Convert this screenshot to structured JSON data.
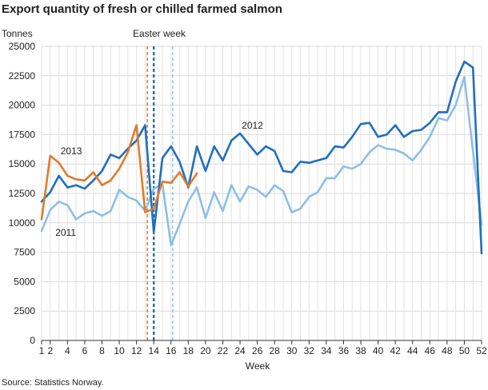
{
  "chart_data": {
    "type": "line",
    "title": "Export quantity of fresh or chilled farmed salmon",
    "ylabel": "Tonnes",
    "xlabel": "Week",
    "source": "Source: Statistics Norway.",
    "ylim": [
      0,
      25000
    ],
    "yticks": [
      0,
      2500,
      5000,
      7500,
      10000,
      12500,
      15000,
      17500,
      20000,
      22500,
      25000
    ],
    "ytick_labels": [
      "0",
      "2500",
      "5000",
      "7500",
      "10000",
      "12500",
      "15000",
      "17500",
      "20000",
      "22500",
      "25000"
    ],
    "xlim": [
      1,
      52
    ],
    "xticks": [
      1,
      2,
      4,
      6,
      8,
      10,
      12,
      14,
      16,
      18,
      20,
      22,
      24,
      26,
      28,
      30,
      32,
      34,
      36,
      38,
      40,
      42,
      44,
      46,
      48,
      50,
      52
    ],
    "grid": true,
    "annotation": "Easter week",
    "series": [
      {
        "name": "2011",
        "color": "#8cbfe6",
        "x": [
          1,
          2,
          3,
          4,
          5,
          6,
          7,
          8,
          9,
          10,
          11,
          12,
          13,
          14,
          15,
          16,
          17,
          18,
          19,
          20,
          21,
          22,
          23,
          24,
          25,
          26,
          27,
          28,
          29,
          30,
          31,
          32,
          33,
          34,
          35,
          36,
          37,
          38,
          39,
          40,
          41,
          42,
          43,
          44,
          45,
          46,
          47,
          48,
          49,
          50,
          51,
          52
        ],
        "values": [
          9300,
          11100,
          11800,
          11500,
          10300,
          10800,
          11000,
          10600,
          11000,
          12800,
          12200,
          11900,
          11000,
          12900,
          13300,
          8100,
          9900,
          11800,
          13000,
          10400,
          12600,
          11000,
          13200,
          11800,
          13100,
          12800,
          12200,
          13200,
          12700,
          10900,
          11200,
          12200,
          12600,
          13800,
          13800,
          14800,
          14600,
          15000,
          16000,
          16600,
          16300,
          16200,
          15900,
          15300,
          16200,
          17300,
          18900,
          18700,
          20000,
          22400,
          16100,
          9800
        ],
        "label_at_x": 2.6,
        "label_at_y": 9300
      },
      {
        "name": "2012",
        "color": "#1f6fbf",
        "x": [
          1,
          2,
          3,
          4,
          5,
          6,
          7,
          8,
          9,
          10,
          11,
          12,
          13,
          14,
          15,
          16,
          17,
          18,
          19,
          20,
          21,
          22,
          23,
          24,
          25,
          26,
          27,
          28,
          29,
          30,
          31,
          32,
          33,
          34,
          35,
          36,
          37,
          38,
          39,
          40,
          41,
          42,
          43,
          44,
          45,
          46,
          47,
          48,
          49,
          50,
          51,
          52
        ],
        "values": [
          11800,
          12600,
          14000,
          13000,
          13200,
          12900,
          13600,
          14400,
          15800,
          15500,
          16300,
          17000,
          18300,
          9200,
          15500,
          16500,
          15200,
          13000,
          16500,
          14400,
          16500,
          15300,
          17000,
          17600,
          16700,
          15800,
          16500,
          16100,
          14400,
          14300,
          15200,
          15100,
          15300,
          15500,
          16500,
          16400,
          17300,
          18400,
          18500,
          17300,
          17500,
          18300,
          17300,
          17800,
          17900,
          18500,
          19400,
          19400,
          22000,
          23700,
          23200,
          7400
        ],
        "label_at_x": 24.2,
        "label_at_y": 18300
      },
      {
        "name": "2013",
        "color": "#e07b2e",
        "x": [
          1,
          2,
          3,
          4,
          5,
          6,
          7,
          8,
          9,
          10,
          11,
          12,
          13,
          14,
          15,
          16,
          17,
          18,
          19
        ],
        "values": [
          10300,
          15700,
          15100,
          14000,
          13700,
          13600,
          14300,
          13200,
          13600,
          14600,
          16000,
          18300,
          10900,
          11200,
          13500,
          13400,
          14300,
          13100,
          14200
        ],
        "label_at_x": 3.2,
        "label_at_y": 15100
      }
    ],
    "easter_lines": [
      {
        "x": 13.25,
        "color": "#e07b2e",
        "width": 1.6
      },
      {
        "x": 14.0,
        "color": "#1f6fbf",
        "width": 2.4
      },
      {
        "x": 16.2,
        "color": "#8cbfe6",
        "width": 1.4
      }
    ]
  }
}
